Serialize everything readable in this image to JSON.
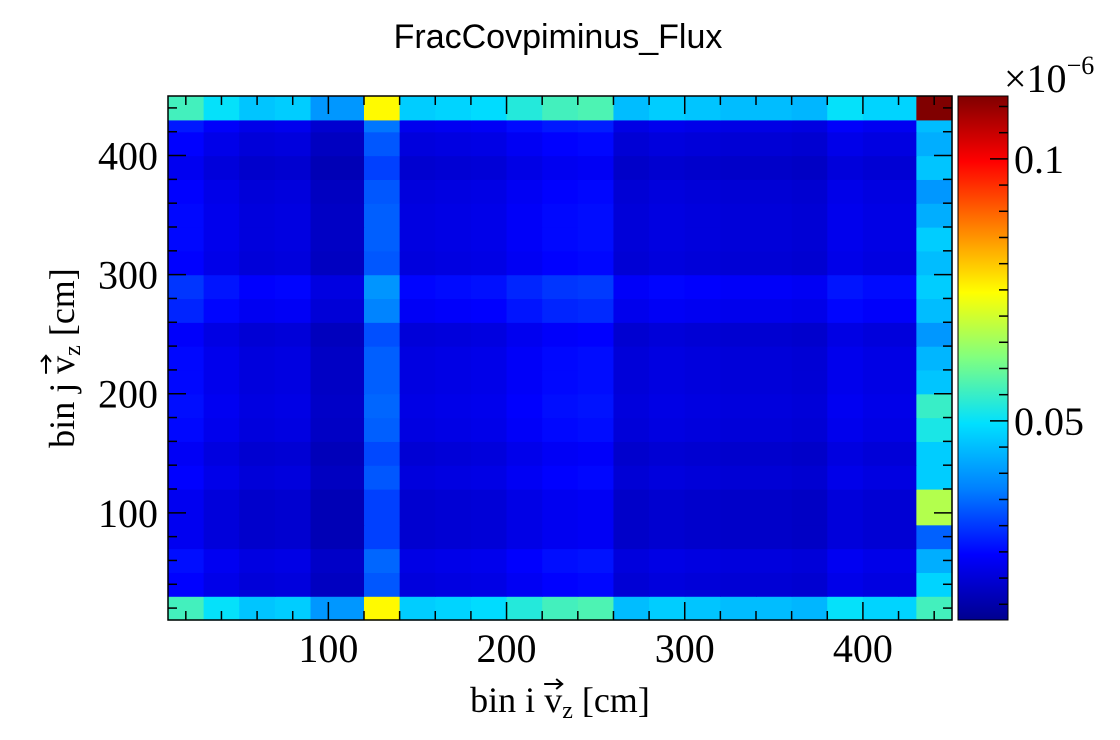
{
  "chart_data": {
    "type": "heatmap",
    "title": "FracCovpiminus_Flux",
    "xlabel": {
      "pre": "bin i ",
      "vec": "v",
      "sub": "z",
      "post": " [cm]"
    },
    "ylabel": {
      "pre": "bin j ",
      "vec": "v",
      "sub": "z",
      "post": " [cm]"
    },
    "xlim": [
      10,
      450
    ],
    "ylim": [
      10,
      450
    ],
    "bin_edges": [
      10,
      30,
      50,
      70,
      90,
      120,
      140,
      160,
      180,
      200,
      220,
      240,
      260,
      280,
      300,
      320,
      340,
      360,
      380,
      400,
      420,
      430,
      450
    ],
    "x_ticks": [
      100,
      200,
      300,
      400
    ],
    "x_tick_labels": [
      "100",
      "200",
      "300",
      "400"
    ],
    "y_ticks": [
      100,
      200,
      300,
      400
    ],
    "y_tick_labels": [
      "100",
      "200",
      "300",
      "400"
    ],
    "z_range": [
      0.012,
      0.112
    ],
    "z_exponent_label": "×10",
    "z_exponent_power": "−6",
    "z_ticks": [
      0.05,
      0.1
    ],
    "z_tick_labels": [
      "0.05",
      "0.1"
    ],
    "colormap": [
      "#00008f",
      "#0000ff",
      "#0080ff",
      "#00e0ff",
      "#80ff80",
      "#ffff00",
      "#ff8000",
      "#ff0000",
      "#800000"
    ],
    "base_row": [
      0.056,
      0.05,
      0.046,
      0.047,
      0.04,
      0.075,
      0.047,
      0.048,
      0.049,
      0.053,
      0.056,
      0.057,
      0.045,
      0.047,
      0.046,
      0.045,
      0.045,
      0.044,
      0.05,
      0.048,
      0.048,
      0.112
    ],
    "row_scale": [
      1.0,
      0.44,
      0.46,
      0.41,
      0.41,
      0.44,
      0.42,
      0.45,
      0.46,
      0.45,
      0.45,
      0.43,
      0.5,
      0.53,
      0.44,
      0.45,
      0.45,
      0.44,
      0.41,
      0.44,
      0.48,
      0.49
    ],
    "last_col_override": [
      0.056,
      0.048,
      0.043,
      0.034,
      0.067,
      0.047,
      0.047,
      0.052,
      0.055,
      0.046,
      0.044,
      0.04,
      0.045,
      0.047,
      0.045,
      0.047,
      0.043,
      0.04,
      0.046,
      0.043,
      0.045,
      0.112
    ]
  }
}
